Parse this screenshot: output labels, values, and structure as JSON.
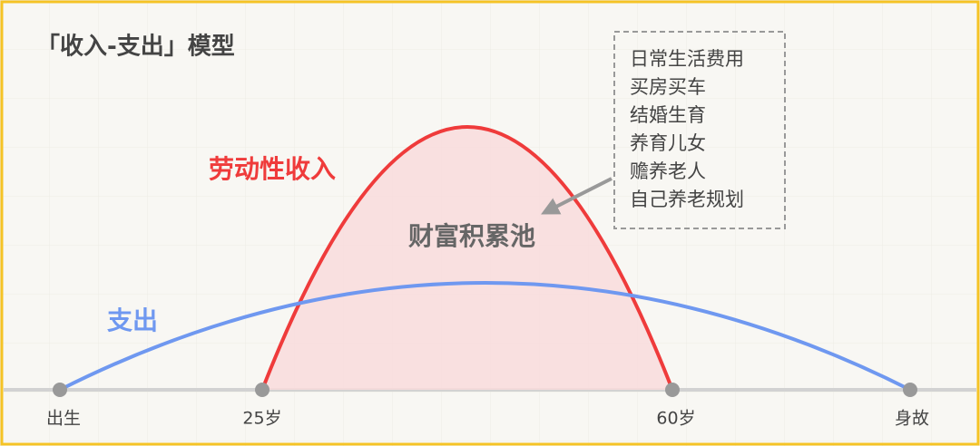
{
  "title": "「收入-支出」模型",
  "labels": {
    "income": "劳动性收入",
    "expense": "支出",
    "pool": "财富积累池"
  },
  "expense_items": [
    "日常生活费用",
    "买房买车",
    "结婚生育",
    "养育儿女",
    "赡养老人",
    "自己养老规划"
  ],
  "timeline": [
    "出生",
    "25岁",
    "60岁",
    "身故"
  ]
}
